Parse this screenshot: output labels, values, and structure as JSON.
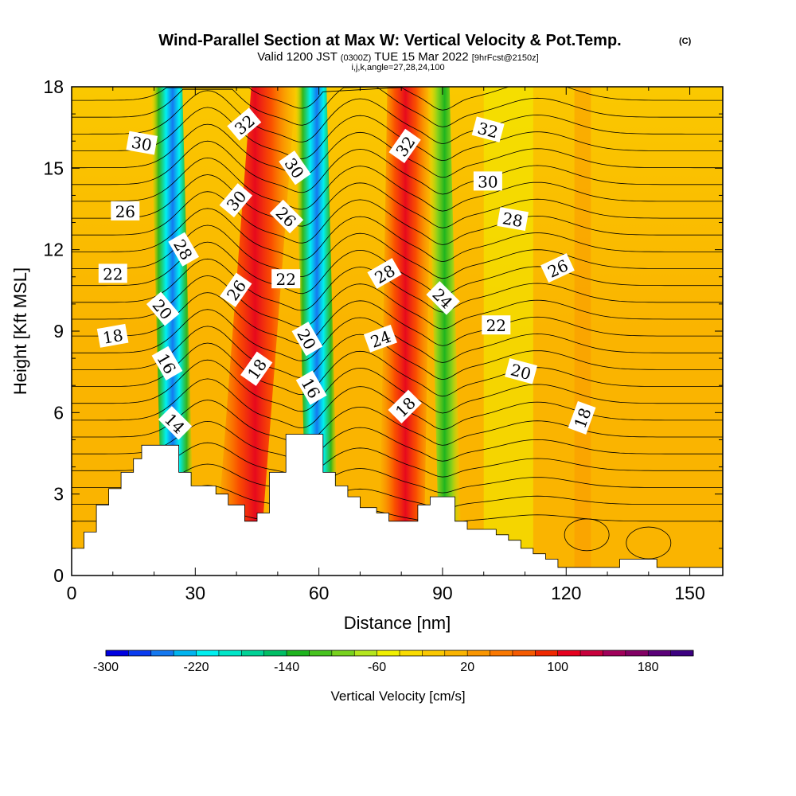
{
  "header": {
    "title": "Wind-Parallel Section at Max W: Vertical Velocity & Pot.Temp.",
    "copyright": "(C)",
    "valid_part1": "Valid 1200 JST",
    "valid_utc": "(0300Z)",
    "valid_part2": "TUE 15 Mar 2022",
    "forecast": "[9hrFcst@2150z]",
    "indices": "i,j,k,angle=27,28,24,100"
  },
  "chart_data": {
    "type": "heatmap",
    "title": "Wind-Parallel Section at Max W: Vertical Velocity & Pot.Temp.",
    "xlabel": "Distance [nm]",
    "ylabel": "Height [Kft MSL]",
    "xlim": [
      0,
      158
    ],
    "ylim": [
      0,
      18
    ],
    "xticks": [
      0,
      30,
      60,
      90,
      120,
      150
    ],
    "yticks": [
      0,
      3,
      6,
      9,
      12,
      15,
      18
    ],
    "grid": false,
    "fill_field": "Vertical Velocity [cm/s]",
    "contour_field": "Potential Temperature",
    "updraft_bands": [
      {
        "x_bottom": 40,
        "x_top": 49,
        "peak_cm_s": 150
      },
      {
        "x_bottom": 80,
        "x_top": 82,
        "peak_cm_s": 140
      }
    ],
    "downdraft_bands": [
      {
        "x_bottom": 26,
        "x_top": 23,
        "peak_cm_s": -240
      },
      {
        "x_bottom": 61,
        "x_top": 58,
        "peak_cm_s": -290
      },
      {
        "x_bottom": 92,
        "x_top": 89,
        "peak_cm_s": -120
      }
    ],
    "contour_labels": [
      {
        "text": "30",
        "x": 17,
        "y": 15.9,
        "angle": 10
      },
      {
        "text": "32",
        "x": 42,
        "y": 16.6,
        "angle": -40
      },
      {
        "text": "32",
        "x": 81,
        "y": 15.8,
        "angle": -55
      },
      {
        "text": "32",
        "x": 101,
        "y": 16.4,
        "angle": 15
      },
      {
        "text": "30",
        "x": 54,
        "y": 15.0,
        "angle": 55
      },
      {
        "text": "30",
        "x": 101,
        "y": 14.5,
        "angle": 0
      },
      {
        "text": "26",
        "x": 13,
        "y": 13.4,
        "angle": 0
      },
      {
        "text": "30",
        "x": 40,
        "y": 13.8,
        "angle": -50
      },
      {
        "text": "26",
        "x": 52,
        "y": 13.2,
        "angle": 45
      },
      {
        "text": "28",
        "x": 107,
        "y": 13.1,
        "angle": 10
      },
      {
        "text": "28",
        "x": 27,
        "y": 12.0,
        "angle": 60
      },
      {
        "text": "22",
        "x": 10,
        "y": 11.1,
        "angle": 0
      },
      {
        "text": "22",
        "x": 52,
        "y": 10.9,
        "angle": 0
      },
      {
        "text": "28",
        "x": 76,
        "y": 11.1,
        "angle": -30
      },
      {
        "text": "26",
        "x": 118,
        "y": 11.3,
        "angle": -25
      },
      {
        "text": "26",
        "x": 40,
        "y": 10.5,
        "angle": -55
      },
      {
        "text": "24",
        "x": 90,
        "y": 10.2,
        "angle": 45
      },
      {
        "text": "20",
        "x": 22,
        "y": 9.8,
        "angle": 50
      },
      {
        "text": "18",
        "x": 10,
        "y": 8.8,
        "angle": -10
      },
      {
        "text": "22",
        "x": 103,
        "y": 9.2,
        "angle": 0
      },
      {
        "text": "20",
        "x": 57,
        "y": 8.7,
        "angle": 60
      },
      {
        "text": "24",
        "x": 75,
        "y": 8.7,
        "angle": -20
      },
      {
        "text": "16",
        "x": 23,
        "y": 7.8,
        "angle": 60
      },
      {
        "text": "18",
        "x": 45,
        "y": 7.6,
        "angle": -55
      },
      {
        "text": "20",
        "x": 109,
        "y": 7.5,
        "angle": 15
      },
      {
        "text": "16",
        "x": 58,
        "y": 6.9,
        "angle": 60
      },
      {
        "text": "18",
        "x": 81,
        "y": 6.2,
        "angle": -45
      },
      {
        "text": "18",
        "x": 124,
        "y": 5.8,
        "angle": -70
      },
      {
        "text": "14",
        "x": 25,
        "y": 5.6,
        "angle": 45
      }
    ],
    "terrain": [
      [
        0,
        1.0
      ],
      [
        3,
        1.0
      ],
      [
        3,
        1.6
      ],
      [
        6,
        1.6
      ],
      [
        6,
        2.6
      ],
      [
        9,
        2.6
      ],
      [
        9,
        3.2
      ],
      [
        12,
        3.2
      ],
      [
        12,
        3.8
      ],
      [
        15,
        3.8
      ],
      [
        15,
        4.3
      ],
      [
        17,
        4.3
      ],
      [
        17,
        4.8
      ],
      [
        26,
        4.8
      ],
      [
        26,
        3.8
      ],
      [
        29,
        3.8
      ],
      [
        29,
        3.3
      ],
      [
        35,
        3.3
      ],
      [
        35,
        3.0
      ],
      [
        38,
        3.0
      ],
      [
        38,
        2.6
      ],
      [
        42,
        2.6
      ],
      [
        42,
        2.0
      ],
      [
        45,
        2.0
      ],
      [
        45,
        2.3
      ],
      [
        48,
        2.3
      ],
      [
        48,
        3.8
      ],
      [
        52,
        3.8
      ],
      [
        52,
        5.2
      ],
      [
        61,
        5.2
      ],
      [
        61,
        3.8
      ],
      [
        64,
        3.8
      ],
      [
        64,
        3.3
      ],
      [
        67,
        3.3
      ],
      [
        67,
        2.9
      ],
      [
        70,
        2.9
      ],
      [
        70,
        2.5
      ],
      [
        74,
        2.5
      ],
      [
        74,
        2.3
      ],
      [
        77,
        2.3
      ],
      [
        77,
        2.0
      ],
      [
        84,
        2.0
      ],
      [
        84,
        2.6
      ],
      [
        87,
        2.6
      ],
      [
        87,
        2.9
      ],
      [
        93,
        2.9
      ],
      [
        93,
        2.0
      ],
      [
        96,
        2.0
      ],
      [
        96,
        1.7
      ],
      [
        103,
        1.7
      ],
      [
        103,
        1.5
      ],
      [
        106,
        1.5
      ],
      [
        106,
        1.3
      ],
      [
        109,
        1.3
      ],
      [
        109,
        1.0
      ],
      [
        112,
        1.0
      ],
      [
        112,
        0.8
      ],
      [
        115,
        0.8
      ],
      [
        115,
        0.6
      ],
      [
        118,
        0.6
      ],
      [
        118,
        0.3
      ],
      [
        133,
        0.3
      ],
      [
        133,
        0.6
      ],
      [
        142,
        0.6
      ],
      [
        142,
        0.3
      ],
      [
        158,
        0.3
      ]
    ],
    "colorbar": {
      "label": "Vertical Velocity [cm/s]",
      "tick_labels": [
        "-300",
        "-220",
        "-140",
        "-60",
        "20",
        "100",
        "180"
      ],
      "min": -300,
      "max": 220,
      "step": 20,
      "colors": [
        "#0000e0",
        "#0a3cf0",
        "#1478f0",
        "#00b4f0",
        "#00f0f0",
        "#00e6c8",
        "#00d296",
        "#00be64",
        "#1eb41e",
        "#46c31e",
        "#78d21e",
        "#b4e61e",
        "#f0f000",
        "#fadc00",
        "#fac800",
        "#fab400",
        "#fa9600",
        "#fa7800",
        "#f55a00",
        "#f02800",
        "#e6001e",
        "#c8003c",
        "#a0005a",
        "#820064",
        "#5a0078",
        "#3c0080"
      ]
    }
  }
}
